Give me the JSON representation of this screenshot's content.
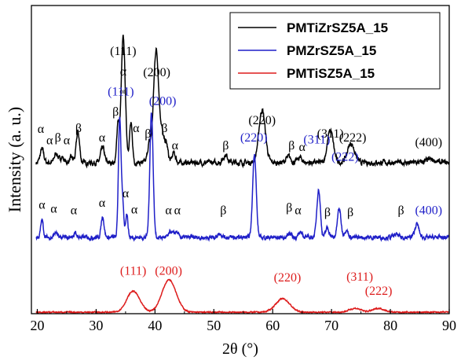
{
  "chart_data": {
    "type": "line",
    "xlabel": "2θ (°)",
    "ylabel": "Intensity (a. u.)",
    "xlim": [
      19,
      90
    ],
    "x_ticks": [
      20,
      30,
      40,
      50,
      60,
      70,
      80,
      90
    ],
    "legend_position": "top-right",
    "series": [
      {
        "name": "PMTiZrSZ5A_15",
        "color": "#000000",
        "baseline": 0.78,
        "noise": 0.05,
        "peaks": [
          [
            20.8,
            0.14,
            0.3
          ],
          [
            23.2,
            0.1,
            0.3
          ],
          [
            24.2,
            0.06,
            0.3
          ],
          [
            25.8,
            0.05,
            0.3
          ],
          [
            26.9,
            0.32,
            0.28
          ],
          [
            31.1,
            0.16,
            0.3
          ],
          [
            33.7,
            0.4,
            0.2
          ],
          [
            34.6,
            1.3,
            0.35
          ],
          [
            35.9,
            0.4,
            0.25
          ],
          [
            39.0,
            0.18,
            0.28
          ],
          [
            40.2,
            1.18,
            0.45
          ],
          [
            41.2,
            0.25,
            0.3
          ],
          [
            41.9,
            0.2,
            0.3
          ],
          [
            43.2,
            0.1,
            0.3
          ],
          [
            52.0,
            0.08,
            0.4
          ],
          [
            58.2,
            0.55,
            0.55
          ],
          [
            62.7,
            0.06,
            0.4
          ],
          [
            64.6,
            0.05,
            0.4
          ],
          [
            69.8,
            0.34,
            0.5
          ],
          [
            73.3,
            0.2,
            0.6
          ],
          [
            86.8,
            0.03,
            0.8
          ]
        ]
      },
      {
        "name": "PMZrSZ5A_15",
        "color": "#1f1fc8",
        "baseline": 0.0,
        "noise": 0.04,
        "peaks": [
          [
            20.8,
            0.18,
            0.22
          ],
          [
            23.1,
            0.05,
            0.25
          ],
          [
            26.4,
            0.04,
            0.3
          ],
          [
            31.1,
            0.22,
            0.25
          ],
          [
            34.0,
            1.25,
            0.22
          ],
          [
            34.5,
            0.35,
            0.2
          ],
          [
            35.2,
            0.25,
            0.2
          ],
          [
            39.4,
            1.3,
            0.28
          ],
          [
            42.7,
            0.06,
            0.3
          ],
          [
            43.6,
            0.06,
            0.3
          ],
          [
            51.0,
            0.04,
            0.4
          ],
          [
            56.9,
            0.88,
            0.3
          ],
          [
            62.9,
            0.05,
            0.3
          ],
          [
            64.8,
            0.06,
            0.3
          ],
          [
            67.8,
            0.5,
            0.3
          ],
          [
            69.3,
            0.1,
            0.3
          ],
          [
            71.3,
            0.3,
            0.3
          ],
          [
            72.5,
            0.08,
            0.3
          ],
          [
            81.0,
            0.03,
            0.4
          ],
          [
            84.5,
            0.14,
            0.35
          ]
        ]
      },
      {
        "name": "PMTiSZ5A_15",
        "color": "#dd1c1c",
        "baseline": -0.78,
        "noise": 0.012,
        "peaks": [
          [
            36.3,
            0.22,
            1.1
          ],
          [
            42.4,
            0.34,
            1.2
          ],
          [
            61.7,
            0.14,
            1.2
          ],
          [
            74.0,
            0.04,
            1.0
          ],
          [
            78.0,
            0.04,
            1.0
          ]
        ]
      }
    ],
    "annotations": [
      {
        "text": "(111)",
        "x": 34.6,
        "level": 1.9,
        "color": "#000000"
      },
      {
        "text": "α",
        "x": 34.6,
        "level": 1.69,
        "color": "#000000"
      },
      {
        "text": "(200)",
        "x": 40.3,
        "level": 1.68,
        "color": "#000000"
      },
      {
        "text": "(220)",
        "x": 58.2,
        "level": 1.18,
        "color": "#000000"
      },
      {
        "text": "(311)",
        "x": 69.8,
        "level": 1.04,
        "color": "#000000"
      },
      {
        "text": "(222)",
        "x": 73.6,
        "level": 1.0,
        "color": "#000000"
      },
      {
        "text": "(400)",
        "x": 86.5,
        "level": 0.95,
        "color": "#000000"
      },
      {
        "text": "α",
        "x": 20.6,
        "level": 1.09,
        "color": "#000000"
      },
      {
        "text": "α",
        "x": 22.1,
        "level": 0.97,
        "color": "#000000"
      },
      {
        "text": "β",
        "x": 23.5,
        "level": 1.0,
        "color": "#000000"
      },
      {
        "text": "α",
        "x": 25.0,
        "level": 0.97,
        "color": "#000000"
      },
      {
        "text": "β",
        "x": 27.0,
        "level": 1.1,
        "color": "#000000"
      },
      {
        "text": "α",
        "x": 31.0,
        "level": 1.0,
        "color": "#000000"
      },
      {
        "text": "β",
        "x": 33.3,
        "level": 1.27,
        "color": "#000000"
      },
      {
        "text": "α",
        "x": 36.8,
        "level": 1.1,
        "color": "#000000"
      },
      {
        "text": "β",
        "x": 38.8,
        "level": 1.04,
        "color": "#000000"
      },
      {
        "text": "β",
        "x": 41.6,
        "level": 1.1,
        "color": "#000000"
      },
      {
        "text": "α",
        "x": 43.4,
        "level": 0.92,
        "color": "#000000"
      },
      {
        "text": "β",
        "x": 52.0,
        "level": 0.92,
        "color": "#000000"
      },
      {
        "text": "β",
        "x": 63.2,
        "level": 0.92,
        "color": "#000000"
      },
      {
        "text": "α",
        "x": 65.0,
        "level": 0.9,
        "color": "#000000"
      },
      {
        "text": "(111)",
        "x": 34.2,
        "level": 1.48,
        "color": "#1f1fc8"
      },
      {
        "text": "(200)",
        "x": 41.3,
        "level": 1.38,
        "color": "#1f1fc8"
      },
      {
        "text": "(220)",
        "x": 56.8,
        "level": 1.0,
        "color": "#1f1fc8"
      },
      {
        "text": "(311)",
        "x": 67.5,
        "level": 0.98,
        "color": "#1f1fc8"
      },
      {
        "text": "(222)",
        "x": 72.3,
        "level": 0.8,
        "color": "#1f1fc8"
      },
      {
        "text": "(400)",
        "x": 86.5,
        "level": 0.24,
        "color": "#1f1fc8"
      },
      {
        "text": "α",
        "x": 20.8,
        "level": 0.3,
        "color": "#000000"
      },
      {
        "text": "α",
        "x": 22.8,
        "level": 0.26,
        "color": "#000000"
      },
      {
        "text": "α",
        "x": 26.2,
        "level": 0.24,
        "color": "#000000"
      },
      {
        "text": "α",
        "x": 31.0,
        "level": 0.32,
        "color": "#000000"
      },
      {
        "text": "α",
        "x": 35.0,
        "level": 0.42,
        "color": "#000000"
      },
      {
        "text": "α",
        "x": 36.5,
        "level": 0.25,
        "color": "#000000"
      },
      {
        "text": "α",
        "x": 42.3,
        "level": 0.24,
        "color": "#000000"
      },
      {
        "text": "α",
        "x": 43.8,
        "level": 0.24,
        "color": "#000000"
      },
      {
        "text": "β",
        "x": 51.6,
        "level": 0.24,
        "color": "#000000"
      },
      {
        "text": "β",
        "x": 62.8,
        "level": 0.27,
        "color": "#000000"
      },
      {
        "text": "α",
        "x": 64.3,
        "level": 0.24,
        "color": "#000000"
      },
      {
        "text": "β",
        "x": 69.3,
        "level": 0.22,
        "color": "#000000"
      },
      {
        "text": "β",
        "x": 73.2,
        "level": 0.22,
        "color": "#000000"
      },
      {
        "text": "β",
        "x": 81.8,
        "level": 0.24,
        "color": "#000000"
      },
      {
        "text": "(111)",
        "x": 36.3,
        "level": -0.39,
        "color": "#dd1c1c"
      },
      {
        "text": "(200)",
        "x": 42.3,
        "level": -0.39,
        "color": "#dd1c1c"
      },
      {
        "text": "(220)",
        "x": 62.5,
        "level": -0.46,
        "color": "#dd1c1c"
      },
      {
        "text": "(311)",
        "x": 74.8,
        "level": -0.45,
        "color": "#dd1c1c"
      },
      {
        "text": "(222)",
        "x": 78.0,
        "level": -0.6,
        "color": "#dd1c1c"
      }
    ],
    "small_annotation": {
      "text": "or",
      "x": 34.5,
      "level": 1.5,
      "color": "#000000"
    }
  }
}
